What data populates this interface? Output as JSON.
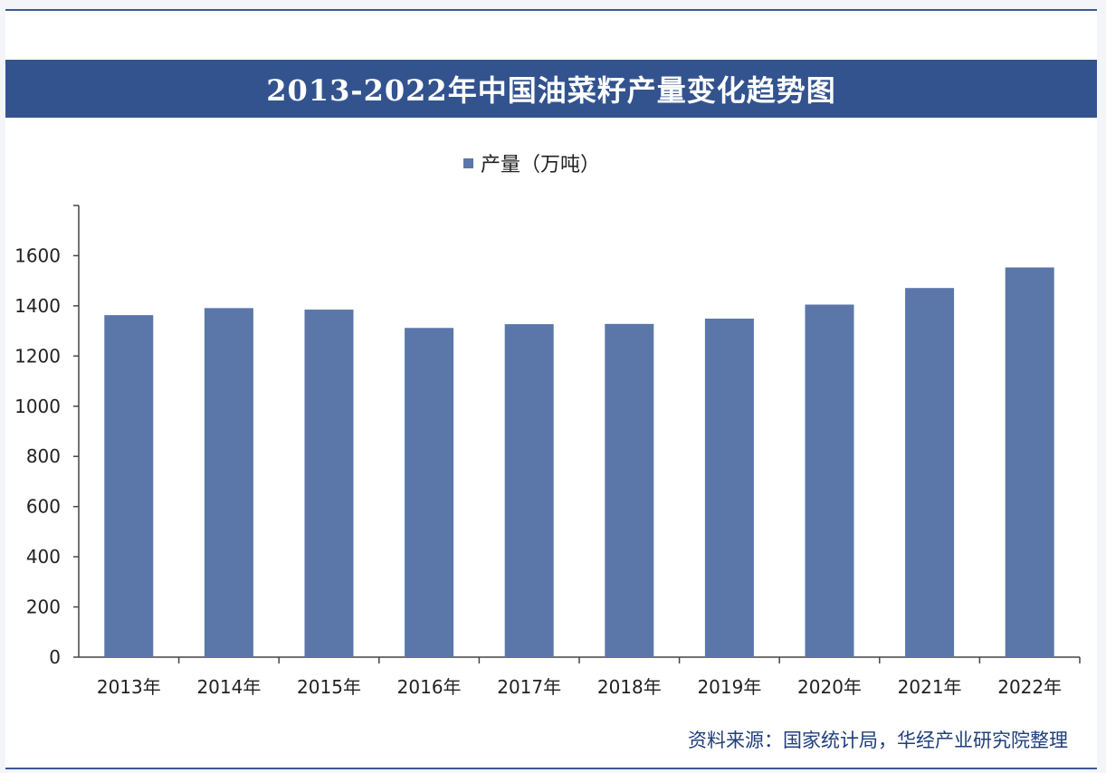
{
  "colors": {
    "title_bg": "#33538f",
    "bar": "#5b76a9",
    "frame_border": "#3b5a96"
  },
  "title": "2013-2022年中国油菜籽产量变化趋势图",
  "legend": {
    "label": "产量（万吨）",
    "placement": "top-center"
  },
  "source": "资料来源：国家统计局，华经产业研究院整理",
  "chart_data": {
    "type": "bar",
    "title": "2013-2022年中国油菜籽产量变化趋势图",
    "categories": [
      "2013年",
      "2014年",
      "2015年",
      "2016年",
      "2017年",
      "2018年",
      "2019年",
      "2020年",
      "2021年",
      "2022年"
    ],
    "series": [
      {
        "name": "产量（万吨）",
        "values": [
          1363,
          1391,
          1385,
          1312,
          1327,
          1328,
          1349,
          1405,
          1471,
          1553
        ]
      }
    ],
    "y_ticks": [
      0,
      200,
      400,
      600,
      800,
      1000,
      1200,
      1400,
      1600
    ],
    "ylim": [
      0,
      1800
    ],
    "grid": false
  }
}
